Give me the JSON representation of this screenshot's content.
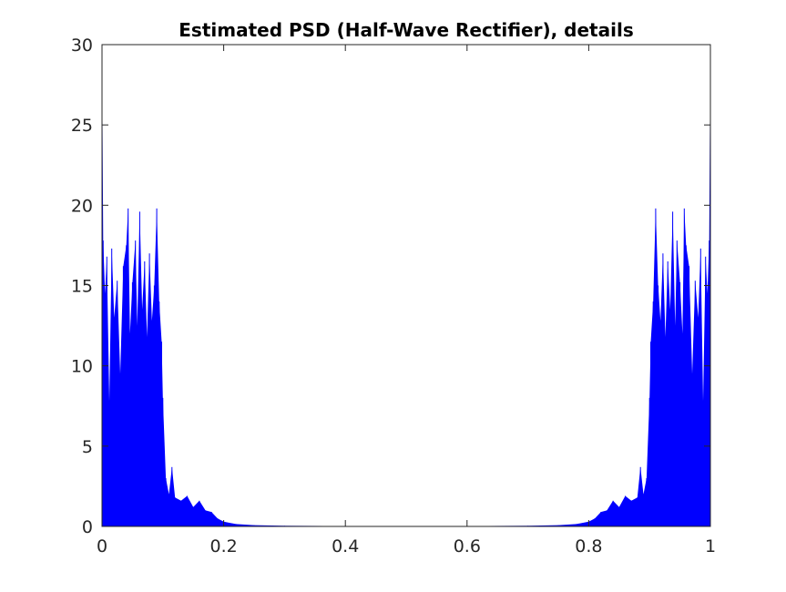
{
  "chart_data": {
    "type": "line",
    "title": "Estimated PSD (Half-Wave Rectifier), details",
    "xlabel": "",
    "ylabel": "",
    "xlim": [
      0,
      1
    ],
    "ylim": [
      0,
      30
    ],
    "xticks": [
      "0",
      "0.2",
      "0.4",
      "0.6",
      "0.8",
      "1"
    ],
    "yticks": [
      "0",
      "5",
      "10",
      "15",
      "20",
      "25",
      "30"
    ],
    "grid": false,
    "legend": "none",
    "series_color": "#0000ff",
    "series": [
      {
        "points": [
          [
            0.0,
            30.0
          ],
          [
            0.002,
            17.8
          ],
          [
            0.005,
            14.5
          ],
          [
            0.008,
            16.8
          ],
          [
            0.012,
            7.8
          ],
          [
            0.016,
            17.3
          ],
          [
            0.02,
            13.0
          ],
          [
            0.025,
            15.3
          ],
          [
            0.03,
            9.5
          ],
          [
            0.035,
            16.2
          ],
          [
            0.04,
            17.5
          ],
          [
            0.043,
            19.8
          ],
          [
            0.046,
            12.0
          ],
          [
            0.05,
            15.2
          ],
          [
            0.055,
            17.8
          ],
          [
            0.058,
            12.5
          ],
          [
            0.062,
            19.6
          ],
          [
            0.066,
            13.5
          ],
          [
            0.07,
            16.5
          ],
          [
            0.074,
            11.8
          ],
          [
            0.078,
            17.0
          ],
          [
            0.082,
            12.8
          ],
          [
            0.086,
            15.0
          ],
          [
            0.09,
            19.8
          ],
          [
            0.094,
            14.0
          ],
          [
            0.098,
            11.5
          ],
          [
            0.1,
            8.0
          ],
          [
            0.105,
            3.0
          ],
          [
            0.11,
            2.0
          ],
          [
            0.115,
            3.7
          ],
          [
            0.12,
            1.8
          ],
          [
            0.13,
            1.6
          ],
          [
            0.14,
            1.9
          ],
          [
            0.15,
            1.2
          ],
          [
            0.16,
            1.6
          ],
          [
            0.17,
            1.0
          ],
          [
            0.18,
            0.9
          ],
          [
            0.19,
            0.5
          ],
          [
            0.2,
            0.3
          ],
          [
            0.22,
            0.15
          ],
          [
            0.25,
            0.08
          ],
          [
            0.3,
            0.04
          ],
          [
            0.4,
            0.02
          ],
          [
            0.5,
            0.01
          ],
          [
            0.6,
            0.02
          ],
          [
            0.7,
            0.04
          ],
          [
            0.75,
            0.08
          ],
          [
            0.78,
            0.15
          ],
          [
            0.8,
            0.3
          ],
          [
            0.81,
            0.5
          ],
          [
            0.82,
            0.9
          ],
          [
            0.83,
            1.0
          ],
          [
            0.84,
            1.6
          ],
          [
            0.85,
            1.2
          ],
          [
            0.86,
            1.9
          ],
          [
            0.87,
            1.6
          ],
          [
            0.88,
            1.8
          ],
          [
            0.885,
            3.7
          ],
          [
            0.89,
            2.0
          ],
          [
            0.895,
            3.0
          ],
          [
            0.9,
            8.0
          ],
          [
            0.902,
            11.5
          ],
          [
            0.906,
            14.0
          ],
          [
            0.91,
            19.8
          ],
          [
            0.914,
            15.0
          ],
          [
            0.918,
            12.8
          ],
          [
            0.922,
            17.0
          ],
          [
            0.926,
            11.8
          ],
          [
            0.93,
            16.5
          ],
          [
            0.934,
            13.5
          ],
          [
            0.938,
            19.6
          ],
          [
            0.942,
            12.5
          ],
          [
            0.945,
            17.8
          ],
          [
            0.95,
            15.2
          ],
          [
            0.954,
            12.0
          ],
          [
            0.957,
            19.8
          ],
          [
            0.96,
            17.5
          ],
          [
            0.965,
            16.2
          ],
          [
            0.97,
            9.5
          ],
          [
            0.975,
            15.3
          ],
          [
            0.98,
            13.0
          ],
          [
            0.984,
            17.3
          ],
          [
            0.988,
            7.8
          ],
          [
            0.992,
            16.8
          ],
          [
            0.995,
            14.5
          ],
          [
            0.998,
            17.8
          ],
          [
            1.0,
            30.0
          ]
        ]
      }
    ]
  }
}
